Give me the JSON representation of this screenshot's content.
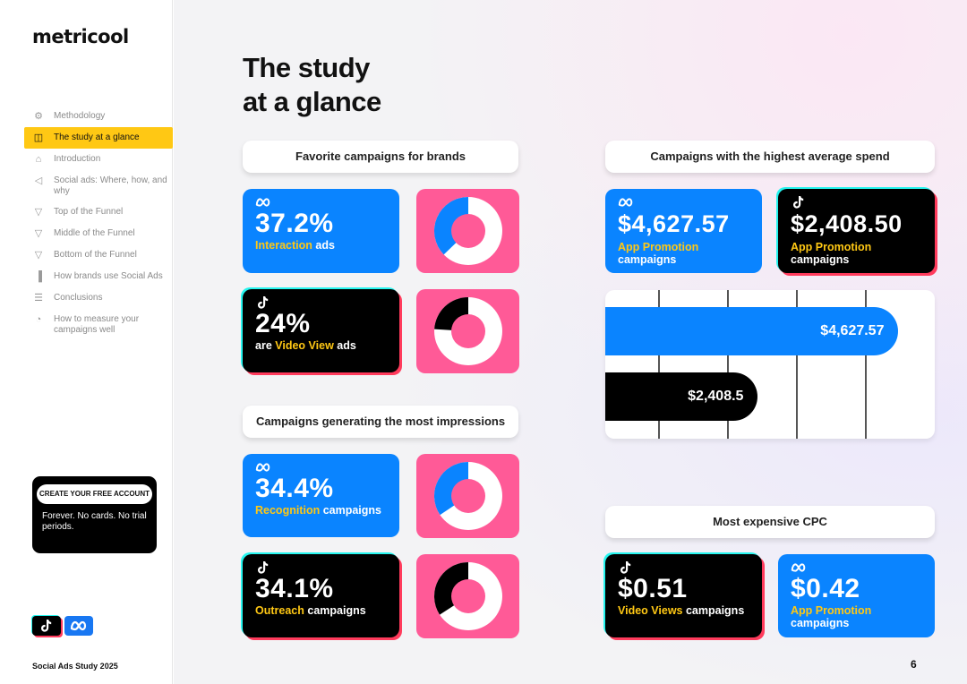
{
  "sidebar": {
    "logo": "metricool",
    "nav": [
      {
        "label": "Methodology",
        "icon": "gear-icon"
      },
      {
        "label": "The study at a glance",
        "icon": "layout-icon"
      },
      {
        "label": "Introduction",
        "icon": "home-icon"
      },
      {
        "label": "Social ads: Where, how, and why",
        "icon": "megaphone-icon"
      },
      {
        "label": "Top of the Funnel",
        "icon": "funnel-icon"
      },
      {
        "label": "Middle of the Funnel",
        "icon": "funnel-icon"
      },
      {
        "label": "Bottom of the Funnel",
        "icon": "funnel-icon"
      },
      {
        "label": "How brands use Social Ads",
        "icon": "bar-chart-icon"
      },
      {
        "label": "Conclusions",
        "icon": "list-icon"
      },
      {
        "label": "How to measure your campaigns well",
        "icon": "gauge-icon"
      }
    ],
    "active_index": 1,
    "cta": {
      "button": "CREATE YOUR FREE ACCOUNT",
      "text": "Forever. No cards. No trial periods."
    },
    "footer": "Social Ads Study 2025"
  },
  "page_number": "6",
  "title_line1": "The study",
  "title_line2": "at a glance",
  "sections": {
    "favorite": "Favorite campaigns for brands",
    "impressions": "Campaigns generating the most impressions",
    "spend": "Campaigns with the highest average spend",
    "cpc": "Most expensive CPC"
  },
  "cards": {
    "fav_meta": {
      "value": "37.2%",
      "hl": "Interaction",
      "rest": " ads",
      "fraction": 0.372
    },
    "fav_tiktok": {
      "value": "24%",
      "pre": "are ",
      "hl": "Video View",
      "rest": " ads",
      "fraction": 0.24
    },
    "imp_meta": {
      "value": "34.4%",
      "hl": "Recognition",
      "rest": " campaigns",
      "fraction": 0.344
    },
    "imp_tiktok": {
      "value": "34.1%",
      "hl": "Outreach",
      "rest": " campaigns",
      "fraction": 0.341
    },
    "spend_meta": {
      "value": "$4,627.57",
      "hl": "App Promotion",
      "rest": "campaigns"
    },
    "spend_tiktok": {
      "value": "$2,408.50",
      "hl": "App Promotion",
      "rest": "campaigns"
    },
    "cpc_tiktok": {
      "value": "$0.51",
      "hl": "Video Views",
      "rest": " campaigns"
    },
    "cpc_meta": {
      "value": "$0.42",
      "hl": "App Promotion",
      "rest": "campaigns"
    }
  },
  "colors": {
    "meta_blue": "#0a84ff",
    "tiktok_black": "#000000",
    "highlight": "#ffc814",
    "donut_bg": "#ff5a97"
  },
  "chart_data": {
    "type": "bar",
    "orientation": "horizontal",
    "categories": [
      "Meta",
      "TikTok"
    ],
    "values": [
      4627.57,
      2408.5
    ],
    "labels": [
      "$4,627.57",
      "$2,408.5"
    ],
    "colors": [
      "#0a84ff",
      "#000000"
    ],
    "xlim": [
      0,
      5200
    ],
    "grid": true
  }
}
